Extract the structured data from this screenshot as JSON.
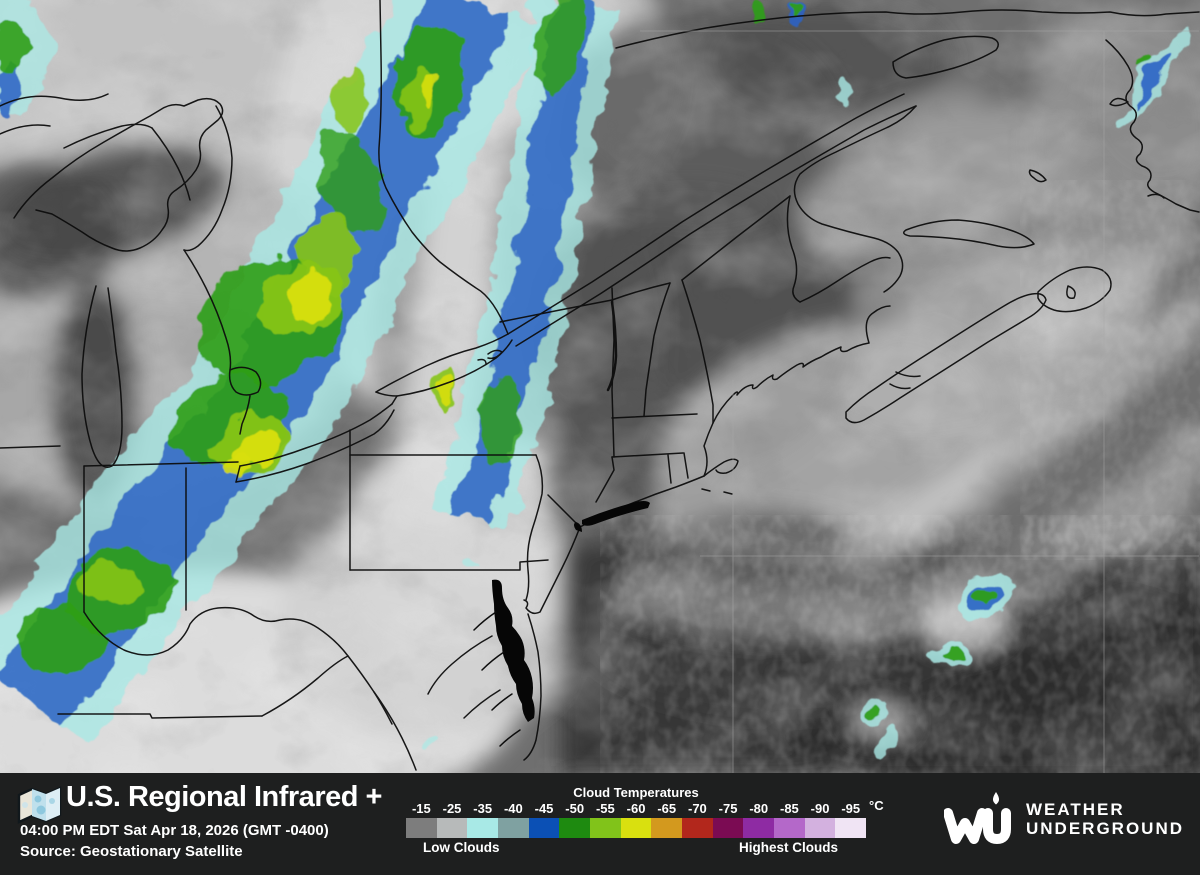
{
  "footer": {
    "map_title": "U.S. Regional Infrared +",
    "timestamp": "04:00 PM EDT Sat Apr 18, 2026 (GMT -0400)",
    "source": "Source: Geostationary Satellite",
    "map_icon": "folded-map-icon"
  },
  "legend": {
    "title": "Cloud Temperatures",
    "unit": "°C",
    "low_clouds_label": "Low Clouds",
    "highest_clouds_label": "Highest Clouds",
    "stops": [
      {
        "temp": "-15",
        "color": "#7d7d7d"
      },
      {
        "temp": "-25",
        "color": "#b7baba"
      },
      {
        "temp": "-35",
        "color": "#a8e9e6"
      },
      {
        "temp": "-40",
        "color": "#7fa1a1"
      },
      {
        "temp": "-45",
        "color": "#0b50b5"
      },
      {
        "temp": "-50",
        "color": "#1e8a10"
      },
      {
        "temp": "-55",
        "color": "#81c31a"
      },
      {
        "temp": "-60",
        "color": "#d9e00f"
      },
      {
        "temp": "-65",
        "color": "#d3991e"
      },
      {
        "temp": "-70",
        "color": "#b2271c"
      },
      {
        "temp": "-75",
        "color": "#7b0b53"
      },
      {
        "temp": "-80",
        "color": "#8e2ba3"
      },
      {
        "temp": "-85",
        "color": "#b468c9"
      },
      {
        "temp": "-90",
        "color": "#d3b1df"
      },
      {
        "temp": "-95",
        "color": "#f0e4f4"
      }
    ]
  },
  "branding": {
    "logo_icon": "wu-droplet-mark",
    "line1": "WEATHER",
    "line2": "UNDERGROUND"
  },
  "colors": {
    "footer_bg": "#1e1f1f",
    "footer_text": "#ffffff",
    "map_border_lines": "#0d0d0d"
  }
}
